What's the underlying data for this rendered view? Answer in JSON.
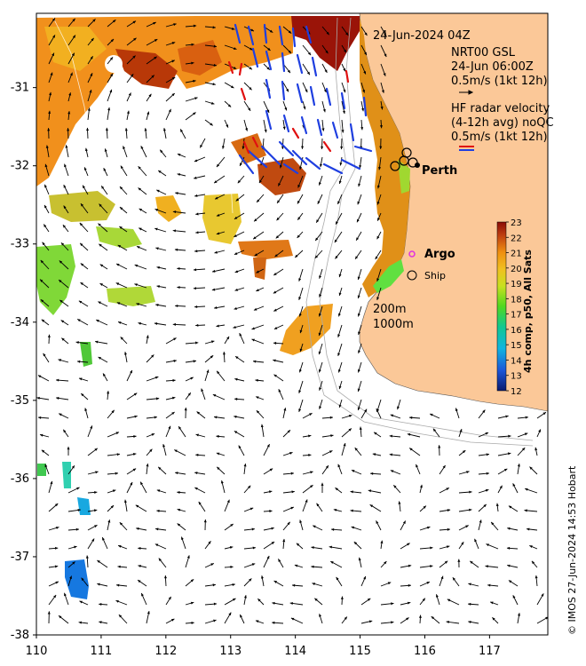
{
  "header": {
    "timestamp": "24-Jun-2024 04Z",
    "model_lines": [
      "NRT00 GSL",
      "24-Jun 06:00Z",
      "0.5m/s (1kt 12h)"
    ],
    "radar_lines": [
      "HF radar velocity",
      "(4-12h avg) noQC",
      "0.5m/s (1kt 12h)"
    ]
  },
  "axes": {
    "x_ticks": [
      "110",
      "111",
      "112",
      "113",
      "114",
      "115",
      "116",
      "117"
    ],
    "y_ticks": [
      "-31",
      "-32",
      "-33",
      "-34",
      "-35",
      "-36",
      "-37",
      "-38"
    ],
    "lon_range": [
      110,
      117.9
    ],
    "lat_range": [
      -38,
      -30.05
    ]
  },
  "labels": {
    "city": "Perth",
    "argo": "Argo",
    "ship": "Ship",
    "depth_200": "200m",
    "depth_1000": "1000m"
  },
  "colorbar": {
    "title": "4h comp, p50, All Sats",
    "ticks": [
      "23",
      "22",
      "21",
      "20",
      "19",
      "18",
      "17",
      "16",
      "15",
      "14",
      "13",
      "12"
    ],
    "min": 12,
    "max": 23
  },
  "credit": "© IMOS 27-Jun-2024 14:53 Hobart",
  "colors": {
    "land": "#fbc898",
    "model_arrow": "#000000",
    "radar_blue": "#1f3fe0",
    "radar_red": "#e01010",
    "argo_marker": "#e030e0"
  }
}
